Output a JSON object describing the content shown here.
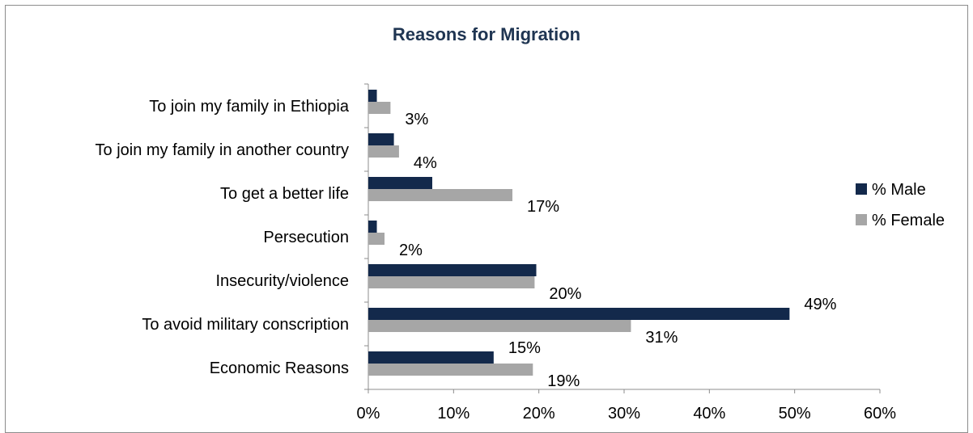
{
  "chart_data": {
    "type": "bar",
    "orientation": "horizontal",
    "title": "Reasons for Migration",
    "categories": [
      "To join my family in Ethiopia",
      "To join my family in another country",
      "To get a better life",
      "Persecution",
      "Insecurity/violence",
      "To avoid military conscription",
      "Economic Reasons"
    ],
    "series": [
      {
        "name": "% Male",
        "color": "#13294b",
        "values": [
          1,
          3,
          7.5,
          1,
          19.7,
          49.4,
          14.7
        ],
        "labels": [
          "",
          "",
          "",
          "",
          "",
          "49%",
          "15%"
        ]
      },
      {
        "name": "% Female",
        "color": "#a6a6a6",
        "values": [
          2.6,
          3.6,
          16.9,
          1.9,
          19.5,
          30.8,
          19.3
        ],
        "labels": [
          "3%",
          "4%",
          "17%",
          "2%",
          "20%",
          "31%",
          "19%"
        ]
      }
    ],
    "x_ticks": [
      "0%",
      "10%",
      "20%",
      "30%",
      "40%",
      "50%",
      "60%"
    ],
    "xlim": [
      0,
      60
    ],
    "legend_position": "right",
    "grid": false
  }
}
